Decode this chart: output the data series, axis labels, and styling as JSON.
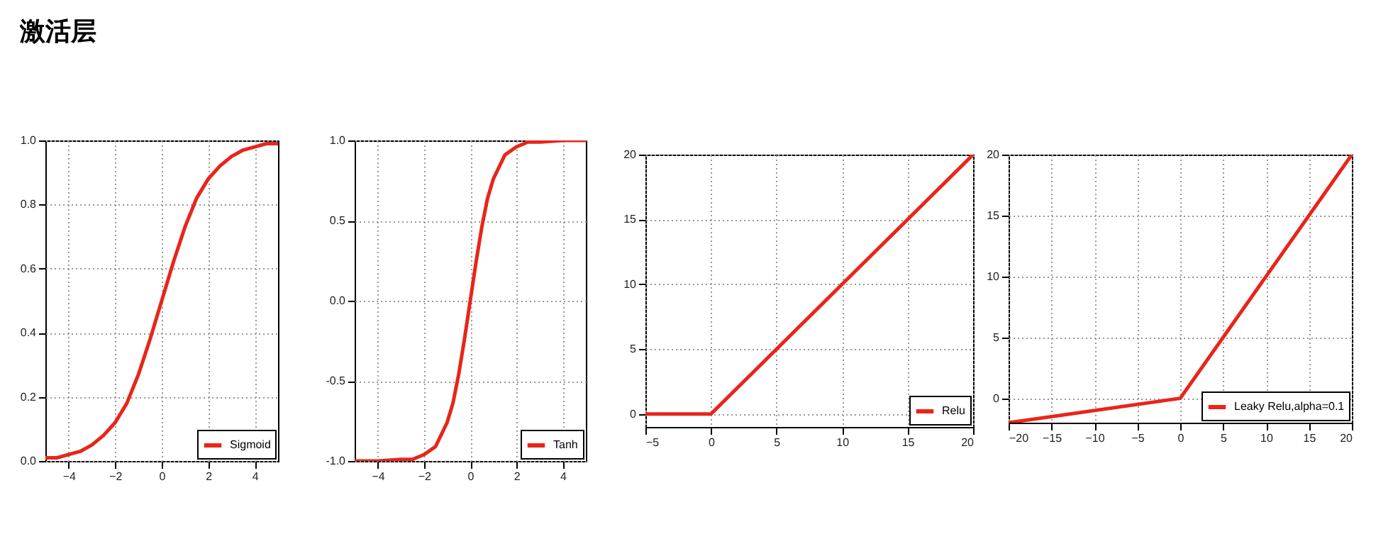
{
  "chart_data": [
    {
      "type": "line",
      "title": "激活层",
      "x": [
        -5,
        -4.5,
        -4,
        -3.5,
        -3,
        -2.5,
        -2,
        -1.5,
        -1,
        -0.5,
        0,
        0.5,
        1,
        1.5,
        2,
        2.5,
        3,
        3.5,
        4,
        4.5,
        5
      ],
      "series": [
        {
          "name": "Sigmoid",
          "color": "#e8251a",
          "values": [
            0.01,
            0.01,
            0.02,
            0.03,
            0.05,
            0.08,
            0.12,
            0.18,
            0.27,
            0.38,
            0.5,
            0.62,
            0.73,
            0.82,
            0.88,
            0.92,
            0.95,
            0.97,
            0.98,
            0.99,
            0.99
          ]
        }
      ],
      "xlim": [
        -5,
        5
      ],
      "xticks": [
        -4,
        -2,
        0,
        2,
        4
      ],
      "ylim": [
        0,
        1
      ],
      "yticks": [
        {
          "value": 0,
          "label": "0.0"
        },
        {
          "value": 0.2,
          "label": "0.2"
        },
        {
          "value": 0.4,
          "label": "0.4"
        },
        {
          "value": 0.6,
          "label": "0.6"
        },
        {
          "value": 0.8,
          "label": "0.8"
        },
        {
          "value": 1,
          "label": "1.0"
        }
      ],
      "grid": true,
      "legend": "bottom right"
    },
    {
      "type": "line",
      "x": [
        -5,
        -4,
        -3,
        -2.5,
        -2,
        -1.5,
        -1,
        -0.75,
        -0.5,
        -0.25,
        0,
        0.25,
        0.5,
        0.75,
        1,
        1.5,
        2,
        2.5,
        3,
        4,
        5
      ],
      "series": [
        {
          "name": "Tanh",
          "color": "#e8251a",
          "values": [
            -1,
            -1,
            -0.99,
            -0.99,
            -0.96,
            -0.91,
            -0.76,
            -0.64,
            -0.46,
            -0.24,
            0,
            0.24,
            0.46,
            0.64,
            0.76,
            0.91,
            0.96,
            0.99,
            0.99,
            1,
            1
          ]
        }
      ],
      "xlim": [
        -5,
        5
      ],
      "xticks": [
        -4,
        -2,
        0,
        2,
        4
      ],
      "ylim": [
        -1,
        1
      ],
      "yticks": [
        {
          "value": -1,
          "label": "-1.0"
        },
        {
          "value": -0.5,
          "label": "-0.5"
        },
        {
          "value": 0,
          "label": "0.0"
        },
        {
          "value": 0.5,
          "label": "0.5"
        },
        {
          "value": 1,
          "label": "1.0"
        }
      ],
      "grid": true,
      "legend": "bottom right"
    },
    {
      "type": "line",
      "x": [
        -5,
        0,
        20
      ],
      "series": [
        {
          "name": "Relu",
          "color": "#e8251a",
          "values": [
            0,
            0,
            20
          ]
        }
      ],
      "xlim": [
        -5,
        20
      ],
      "xticks": [
        -5,
        0,
        5,
        10,
        15,
        20
      ],
      "ylim": [
        -1,
        20
      ],
      "yticks": [
        0,
        5,
        10,
        15,
        20
      ],
      "grid": true,
      "legend": "bottom right"
    },
    {
      "type": "line",
      "x": [
        -20,
        0,
        20
      ],
      "series": [
        {
          "name": "Leaky Relu,alpha=0.1",
          "color": "#e8251a",
          "values": [
            -2,
            0,
            20
          ]
        }
      ],
      "xlim": [
        -20,
        20
      ],
      "xticks": [
        -20,
        -15,
        -10,
        -5,
        0,
        5,
        10,
        15,
        20
      ],
      "ylim": [
        -2,
        20
      ],
      "yticks": [
        0,
        5,
        10,
        15,
        20
      ],
      "grid": true,
      "legend": "bottom right"
    }
  ]
}
